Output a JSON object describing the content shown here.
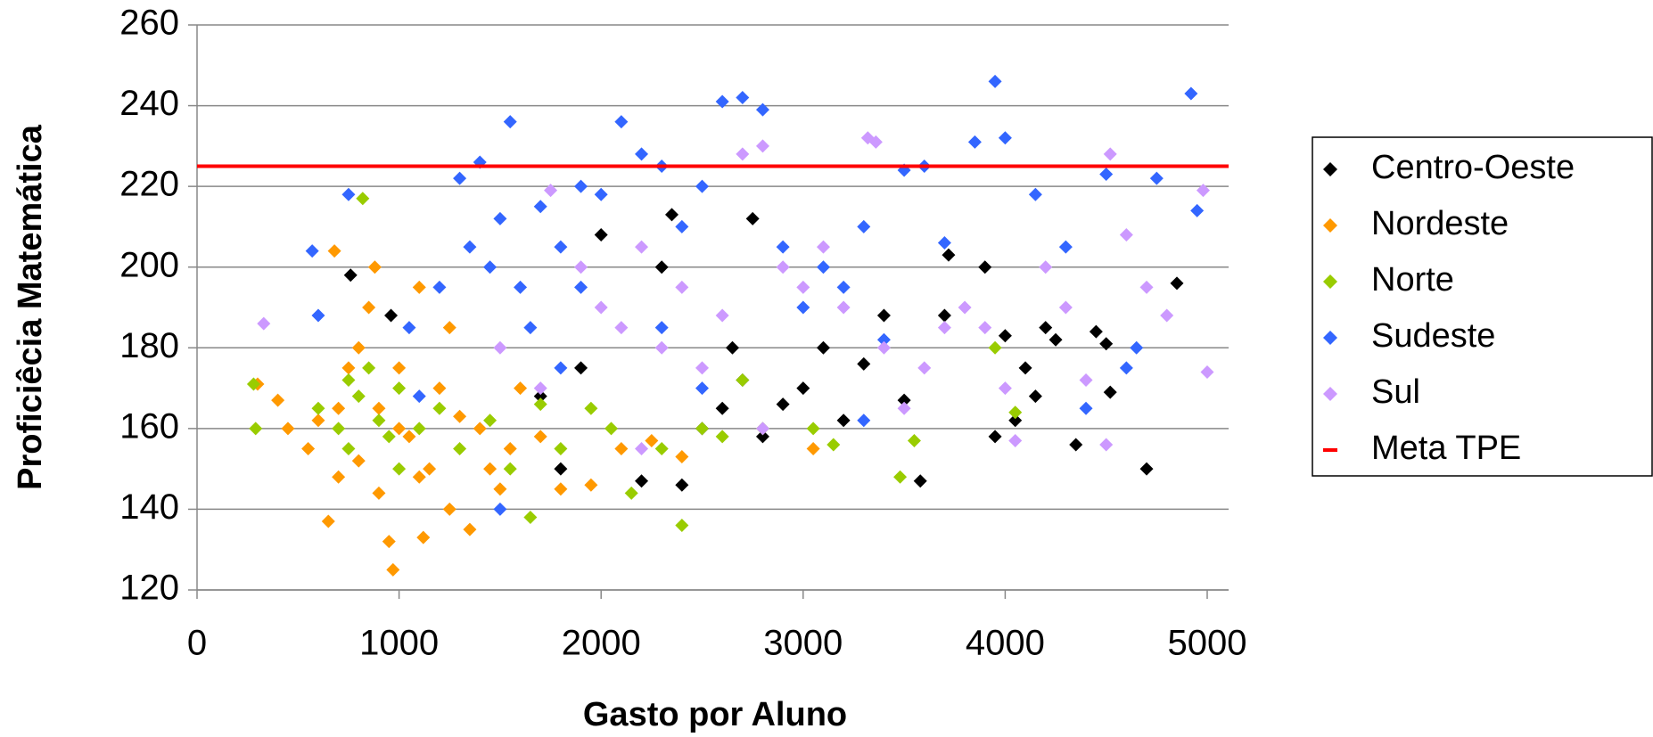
{
  "chart_data": {
    "type": "scatter",
    "xlabel": "Gasto por Aluno",
    "ylabel": "Proficiêcia Matemática",
    "xlim": [
      0,
      5000
    ],
    "xticks": [
      0,
      1000,
      2000,
      3000,
      4000,
      5000
    ],
    "ylim": [
      120,
      260
    ],
    "yticks": [
      120,
      140,
      160,
      180,
      200,
      220,
      240,
      260
    ],
    "grid": true,
    "legend": "right",
    "series": [
      {
        "name": "Centro-Oeste",
        "color": "#000000",
        "x": [
          760,
          960,
          1700,
          1800,
          2000,
          2200,
          2300,
          2400,
          2500,
          2600,
          2700,
          2800,
          2900,
          3000,
          3100,
          3200,
          3400,
          3500,
          3580,
          3700,
          3720,
          3900,
          3950,
          4000,
          4050,
          4100,
          4150,
          4200,
          4250,
          4350,
          4450,
          4500,
          4520,
          4700,
          4850,
          2350,
          2650,
          3300,
          1900,
          2750
        ],
        "values": [
          198,
          188,
          168,
          150,
          208,
          147,
          200,
          146,
          160,
          165,
          172,
          158,
          166,
          170,
          180,
          162,
          188,
          167,
          147,
          188,
          203,
          200,
          158,
          183,
          162,
          175,
          168,
          185,
          182,
          156,
          184,
          181,
          169,
          150,
          196,
          213,
          180,
          176,
          175,
          212
        ]
      },
      {
        "name": "Nordeste",
        "color": "#ff9900",
        "x": [
          300,
          400,
          450,
          550,
          600,
          650,
          680,
          700,
          750,
          800,
          850,
          880,
          900,
          950,
          970,
          1000,
          1050,
          1100,
          1120,
          1150,
          1200,
          1250,
          1300,
          1350,
          1400,
          1450,
          1500,
          1550,
          1600,
          1700,
          1800,
          1950,
          2100,
          2250,
          2400,
          3050,
          1000,
          900,
          1100,
          800,
          1250,
          700
        ],
        "values": [
          171,
          167,
          160,
          155,
          162,
          137,
          204,
          148,
          175,
          152,
          190,
          200,
          144,
          132,
          125,
          160,
          158,
          195,
          133,
          150,
          170,
          140,
          163,
          135,
          160,
          150,
          145,
          155,
          170,
          158,
          145,
          146,
          155,
          157,
          153,
          155,
          175,
          165,
          148,
          180,
          185,
          165
        ]
      },
      {
        "name": "Norte",
        "color": "#99cc00",
        "x": [
          280,
          290,
          600,
          700,
          750,
          800,
          820,
          850,
          900,
          950,
          1000,
          1100,
          1200,
          1300,
          1450,
          1550,
          1650,
          1700,
          1800,
          1950,
          2050,
          2150,
          2300,
          2400,
          2500,
          2600,
          2700,
          2800,
          3050,
          3150,
          3480,
          3550,
          3950,
          4050,
          750,
          1000
        ],
        "values": [
          171,
          160,
          165,
          160,
          172,
          168,
          217,
          175,
          162,
          158,
          170,
          160,
          165,
          155,
          162,
          150,
          138,
          166,
          155,
          165,
          160,
          144,
          155,
          136,
          160,
          158,
          172,
          160,
          160,
          156,
          148,
          157,
          180,
          164,
          155,
          150
        ]
      },
      {
        "name": "Sudeste",
        "color": "#3366ff",
        "x": [
          570,
          600,
          750,
          1050,
          1200,
          1300,
          1350,
          1400,
          1450,
          1500,
          1550,
          1600,
          1650,
          1700,
          1800,
          1900,
          2000,
          2100,
          2200,
          2300,
          2400,
          2500,
          2600,
          2700,
          2800,
          2900,
          3000,
          3100,
          3200,
          3300,
          3400,
          3500,
          3600,
          3700,
          3850,
          3950,
          4000,
          4150,
          4300,
          4500,
          4650,
          4750,
          4920,
          4950,
          1500,
          1800,
          2500,
          3300,
          4400,
          4600,
          1100,
          1900,
          2300
        ],
        "values": [
          204,
          188,
          218,
          185,
          195,
          222,
          205,
          226,
          200,
          212,
          236,
          195,
          185,
          215,
          205,
          220,
          218,
          236,
          228,
          225,
          210,
          220,
          241,
          242,
          239,
          205,
          190,
          200,
          195,
          210,
          182,
          224,
          225,
          206,
          231,
          246,
          232,
          218,
          205,
          223,
          180,
          222,
          243,
          214,
          140,
          175,
          170,
          162,
          165,
          175,
          168,
          195,
          185
        ]
      },
      {
        "name": "Sul",
        "color": "#cc99ff",
        "x": [
          330,
          1700,
          1750,
          1900,
          2000,
          2100,
          2200,
          2300,
          2400,
          2500,
          2600,
          2700,
          2800,
          2900,
          3000,
          3100,
          3200,
          3320,
          3360,
          3400,
          3600,
          3700,
          3800,
          3900,
          4000,
          4050,
          4200,
          4300,
          4400,
          4500,
          4520,
          4600,
          4700,
          4800,
          4980,
          5000,
          2800,
          2200,
          3500,
          1500
        ],
        "values": [
          186,
          170,
          219,
          200,
          190,
          185,
          205,
          180,
          195,
          175,
          188,
          228,
          230,
          200,
          195,
          205,
          190,
          232,
          231,
          180,
          175,
          185,
          190,
          185,
          170,
          157,
          200,
          190,
          172,
          156,
          228,
          208,
          195,
          188,
          219,
          174,
          160,
          155,
          165,
          180
        ]
      }
    ],
    "reference_line": {
      "name": "Meta TPE",
      "value": 225,
      "color": "#ff0000"
    }
  }
}
